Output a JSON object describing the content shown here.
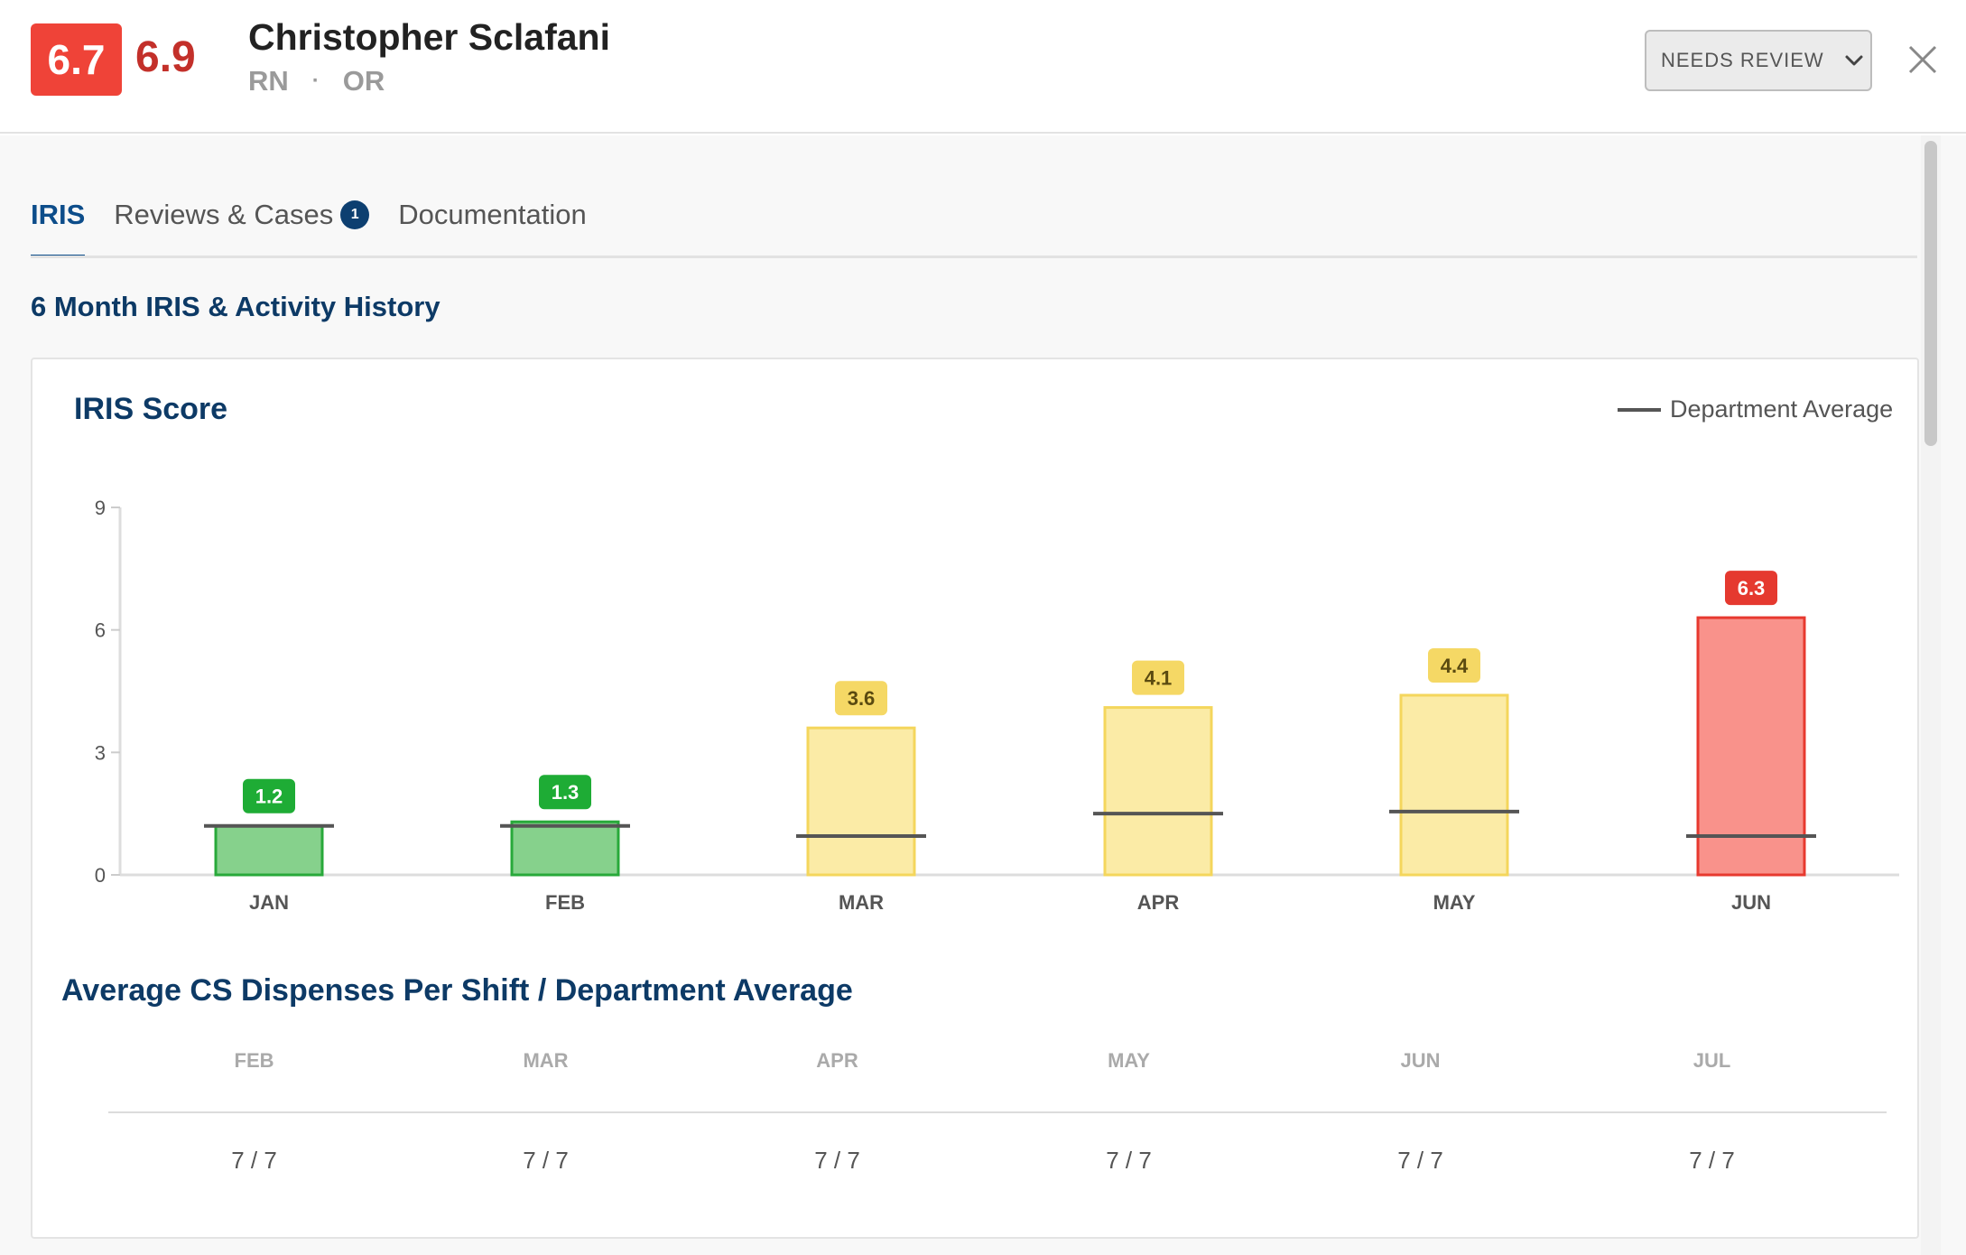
{
  "header": {
    "score_primary": "6.7",
    "score_secondary": "6.9",
    "name": "Christopher Sclafani",
    "role": "RN",
    "separator": "·",
    "department": "OR",
    "status_label": "NEEDS REVIEW",
    "colors": {
      "score_badge": "#ef4338",
      "score_secondary": "#c3302a"
    }
  },
  "tabs": [
    {
      "label": "IRIS",
      "active": true
    },
    {
      "label": "Reviews & Cases",
      "badge": "1"
    },
    {
      "label": "Documentation"
    }
  ],
  "section_title": "6 Month IRIS & Activity History",
  "iris_card": {
    "title": "IRIS Score",
    "legend_label": "Department Average"
  },
  "chart_data": {
    "type": "bar",
    "title": "IRIS Score",
    "categories": [
      "JAN",
      "FEB",
      "MAR",
      "APR",
      "MAY",
      "JUN"
    ],
    "values": [
      1.2,
      1.3,
      3.6,
      4.1,
      4.4,
      6.3
    ],
    "value_labels": [
      "1.2",
      "1.3",
      "3.6",
      "4.1",
      "4.4",
      "6.3"
    ],
    "department_average": [
      1.2,
      1.2,
      0.95,
      1.5,
      1.55,
      0.95
    ],
    "bar_levels": [
      "green",
      "green",
      "yellow",
      "yellow",
      "yellow",
      "red"
    ],
    "ylim": [
      0,
      9
    ],
    "yticks": [
      "0",
      "3",
      "6",
      "9"
    ],
    "legend": [
      {
        "name": "Department Average",
        "style": "line"
      }
    ],
    "legend_position": "top-right",
    "colors": {
      "green": {
        "fill": "#86d18c",
        "stroke": "#28a93a",
        "label": "#1eac35"
      },
      "yellow": {
        "fill": "#fbeba6",
        "stroke": "#f4d65c",
        "label": "#f5d865"
      },
      "red": {
        "fill": "#f9928b",
        "stroke": "#e7392f",
        "label": "#e5392f"
      },
      "average_line": "#555555"
    }
  },
  "cs_dispenses": {
    "title": "Average CS Dispenses Per Shift / Department Average",
    "months": [
      "FEB",
      "MAR",
      "APR",
      "MAY",
      "JUN",
      "JUL"
    ],
    "values": [
      "7 / 7",
      "7 / 7",
      "7 / 7",
      "7 / 7",
      "7 / 7",
      "7 / 7"
    ]
  }
}
